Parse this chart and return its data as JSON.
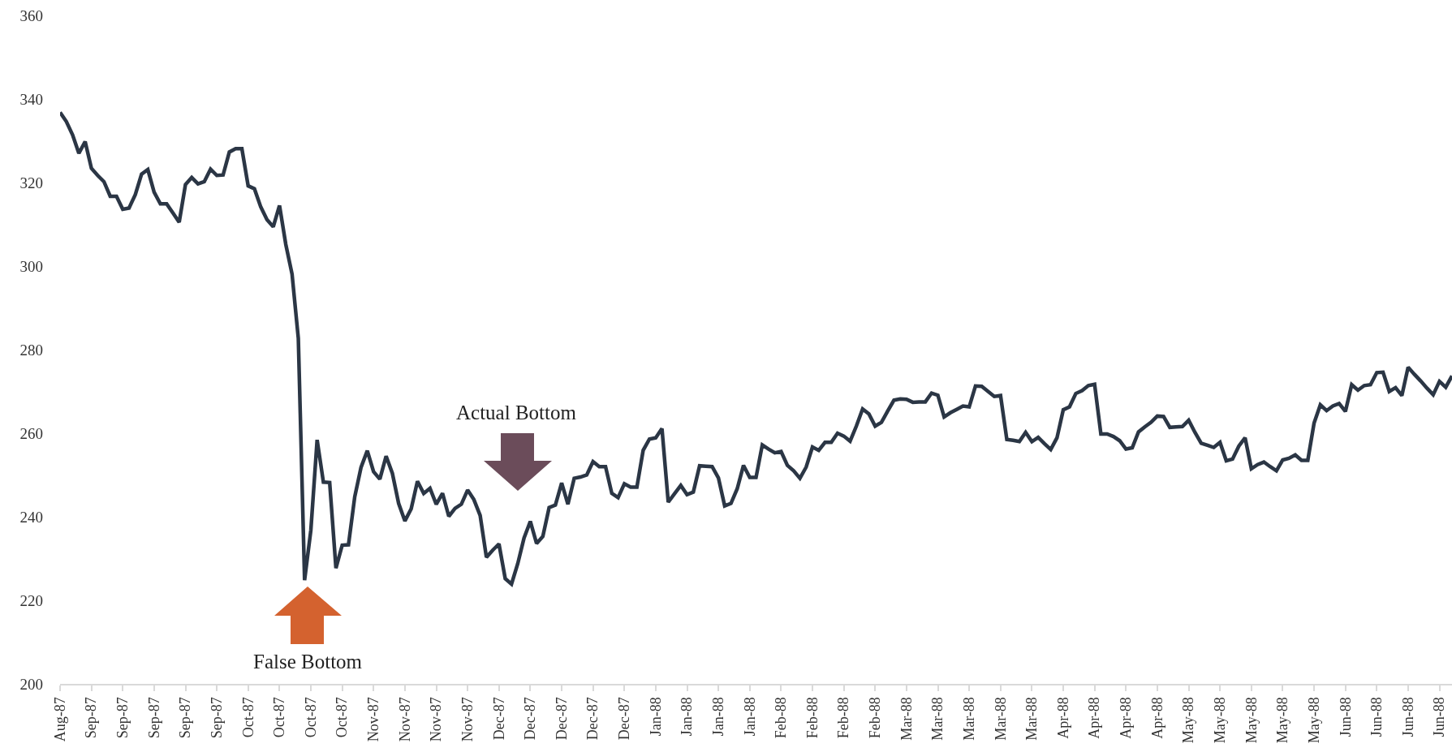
{
  "chart_data": {
    "type": "line",
    "categories": [
      "Aug-87",
      null,
      null,
      null,
      null,
      "Sep-87",
      null,
      null,
      null,
      null,
      "Sep-87",
      null,
      null,
      null,
      null,
      "Sep-87",
      null,
      null,
      null,
      null,
      "Sep-87",
      null,
      null,
      null,
      null,
      "Sep-87",
      null,
      null,
      null,
      null,
      "Oct-87",
      null,
      null,
      null,
      null,
      "Oct-87",
      null,
      null,
      null,
      null,
      "Oct-87",
      null,
      null,
      null,
      null,
      "Oct-87",
      null,
      null,
      null,
      null,
      "Nov-87",
      null,
      null,
      null,
      null,
      "Nov-87",
      null,
      null,
      null,
      null,
      "Nov-87",
      null,
      null,
      null,
      null,
      "Nov-87",
      null,
      null,
      null,
      null,
      "Dec-87",
      null,
      null,
      null,
      null,
      "Dec-87",
      null,
      null,
      null,
      null,
      "Dec-87",
      null,
      null,
      null,
      null,
      "Dec-87",
      null,
      null,
      null,
      null,
      "Dec-87",
      null,
      null,
      null,
      null,
      "Jan-88",
      null,
      null,
      null,
      null,
      "Jan-88",
      null,
      null,
      null,
      null,
      "Jan-88",
      null,
      null,
      null,
      null,
      "Jan-88",
      null,
      null,
      null,
      null,
      "Feb-88",
      null,
      null,
      null,
      null,
      "Feb-88",
      null,
      null,
      null,
      null,
      "Feb-88",
      null,
      null,
      null,
      null,
      "Feb-88",
      null,
      null,
      null,
      null,
      "Mar-88",
      null,
      null,
      null,
      null,
      "Mar-88",
      null,
      null,
      null,
      null,
      "Mar-88",
      null,
      null,
      null,
      null,
      "Mar-88",
      null,
      null,
      null,
      null,
      "Mar-88",
      null,
      null,
      null,
      null,
      "Apr-88",
      null,
      null,
      null,
      null,
      "Apr-88",
      null,
      null,
      null,
      null,
      "Apr-88",
      null,
      null,
      null,
      null,
      "Apr-88",
      null,
      null,
      null,
      null,
      "May-88",
      null,
      null,
      null,
      null,
      "May-88",
      null,
      null,
      null,
      null,
      "May-88",
      null,
      null,
      null,
      null,
      "May-88",
      null,
      null,
      null,
      null,
      "May-88",
      null,
      null,
      null,
      null,
      "Jun-88",
      null,
      null,
      null,
      null,
      "Jun-88",
      null,
      null,
      null,
      null,
      "Jun-88",
      null,
      null,
      null,
      null,
      "Jun-88",
      null,
      null
    ],
    "series": [
      {
        "color": "#2b3645",
        "values": [
          336.8,
          334.6,
          331.4,
          327.0,
          329.8,
          323.4,
          321.7,
          320.2,
          316.7,
          316.7,
          313.6,
          313.9,
          317.1,
          322.0,
          323.1,
          317.7,
          314.9,
          314.9,
          312.7,
          310.5,
          319.5,
          321.2,
          319.7,
          320.2,
          323.2,
          321.7,
          321.8,
          327.3,
          328.1,
          328.1,
          319.2,
          318.5,
          314.2,
          311.1,
          309.4,
          314.5,
          305.2,
          298.1,
          282.7,
          224.8,
          236.8,
          258.4,
          248.3,
          248.2,
          227.7,
          233.2,
          233.3,
          244.8,
          251.8,
          255.8,
          250.8,
          249.0,
          254.5,
          250.4,
          243.2,
          239.0,
          241.9,
          248.5,
          245.6,
          246.8,
          243.0,
          245.6,
          240.1,
          242.0,
          243.0,
          246.4,
          244.1,
          240.3,
          230.3,
          232.0,
          233.5,
          225.2,
          223.9,
          228.8,
          234.9,
          238.9,
          233.6,
          235.3,
          242.2,
          242.8,
          248.1,
          243.0,
          249.2,
          249.5,
          250.0,
          253.2,
          252.0,
          252.0,
          245.6,
          244.6,
          247.9,
          247.1,
          247.1,
          255.9,
          258.6,
          258.9,
          261.1,
          243.5,
          245.5,
          247.5,
          245.3,
          245.9,
          252.2,
          252.1,
          252.0,
          249.3,
          242.6,
          243.2,
          246.7,
          252.3,
          249.4,
          249.4,
          257.2,
          256.2,
          255.3,
          255.6,
          252.3,
          251.0,
          249.2,
          251.9,
          256.7,
          255.9,
          257.8,
          257.8,
          260.0,
          259.3,
          258.1,
          261.7,
          265.8,
          264.6,
          261.7,
          262.6,
          265.3,
          267.9,
          268.2,
          268.1,
          267.4,
          267.5,
          267.5,
          269.6,
          269.1,
          263.9,
          264.9,
          265.7,
          266.5,
          266.3,
          271.3,
          271.2,
          270.0,
          268.8,
          269.0,
          258.5,
          258.3,
          258.0,
          260.2,
          258.0,
          259.0,
          257.5,
          256.1,
          258.9,
          265.6,
          266.3,
          269.5,
          270.2,
          271.4,
          271.7,
          259.8,
          259.8,
          259.2,
          258.2,
          256.2,
          256.5,
          260.3,
          261.5,
          262.6,
          264.1,
          264.0,
          261.4,
          261.5,
          261.6,
          263.1,
          260.2,
          257.6,
          257.1,
          256.6,
          257.8,
          253.4,
          253.8,
          256.9,
          258.9,
          251.5,
          252.5,
          253.1,
          252.0,
          251.0,
          253.6,
          254.0,
          254.8,
          253.5,
          253.5,
          262.4,
          266.8,
          265.4,
          266.5,
          267.1,
          265.2,
          271.6,
          270.3,
          271.4,
          271.6,
          274.5,
          274.6,
          270.0,
          270.9,
          269.0,
          275.8,
          274.1,
          272.5,
          270.8,
          269.2,
          272.4,
          271.0,
          273.7
        ]
      }
    ],
    "ylim": [
      200,
      360
    ],
    "yticks": [
      200,
      220,
      240,
      260,
      280,
      300,
      320,
      340,
      360
    ],
    "grid": false,
    "marker": "none",
    "line_style": "solid",
    "annotations": [
      "Actual Bottom",
      "False Bottom"
    ]
  }
}
